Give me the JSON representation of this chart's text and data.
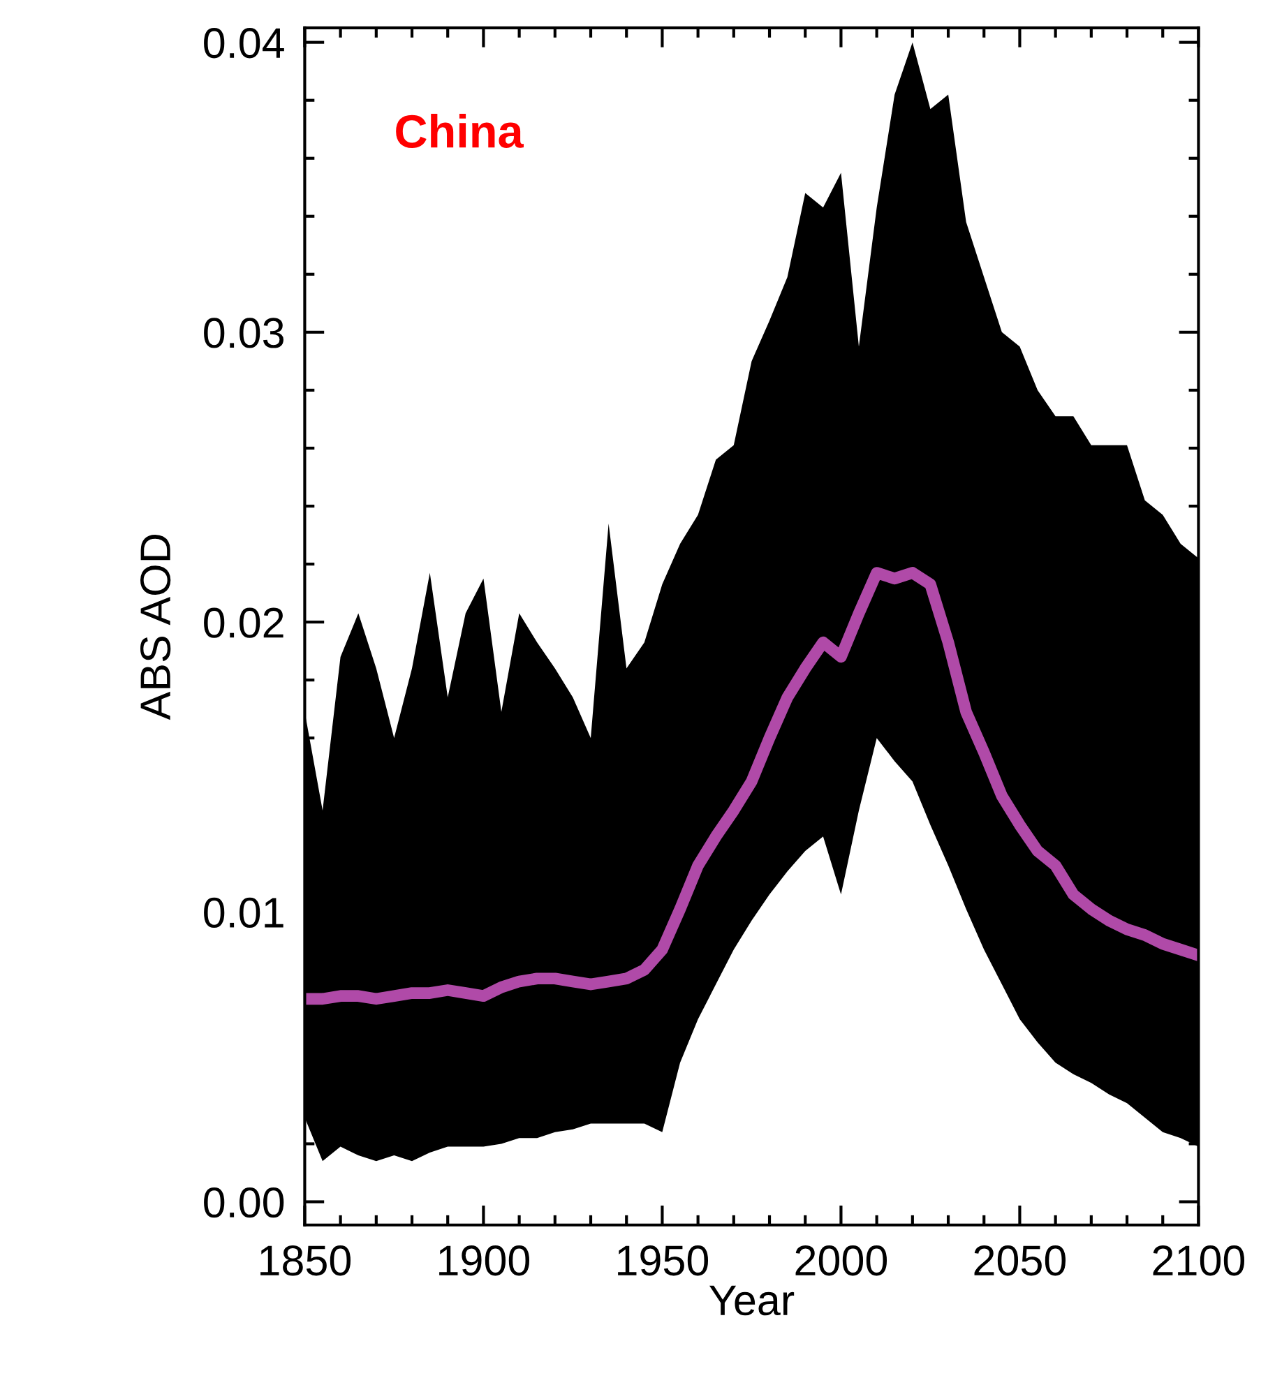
{
  "chart_data": {
    "type": "line",
    "xlabel": "Year",
    "ylabel": "ABS AOD",
    "annotations": [
      "China"
    ],
    "x": [
      1850,
      1855,
      1860,
      1865,
      1870,
      1875,
      1880,
      1885,
      1890,
      1895,
      1900,
      1905,
      1910,
      1915,
      1920,
      1925,
      1930,
      1935,
      1940,
      1945,
      1950,
      1955,
      1960,
      1965,
      1970,
      1975,
      1980,
      1985,
      1990,
      1995,
      2000,
      2005,
      2010,
      2015,
      2020,
      2025,
      2030,
      2035,
      2040,
      2045,
      2050,
      2055,
      2060,
      2065,
      2070,
      2075,
      2080,
      2085,
      2090,
      2095,
      2100
    ],
    "series": [
      {
        "color": "#b04aa8",
        "values": [
          0.007,
          0.007,
          0.0071,
          0.0071,
          0.007,
          0.0071,
          0.0072,
          0.0072,
          0.0073,
          0.0072,
          0.0071,
          0.0074,
          0.0076,
          0.0077,
          0.0077,
          0.0076,
          0.0075,
          0.0076,
          0.0077,
          0.008,
          0.0087,
          0.0101,
          0.0116,
          0.0126,
          0.0135,
          0.0145,
          0.016,
          0.0174,
          0.0184,
          0.0193,
          0.0188,
          0.0203,
          0.0217,
          0.0215,
          0.0217,
          0.0213,
          0.0193,
          0.0169,
          0.0155,
          0.014,
          0.013,
          0.0121,
          0.0116,
          0.0106,
          0.0101,
          0.0097,
          0.0094,
          0.0092,
          0.0089,
          0.0087,
          0.0085
        ],
        "upper": [
          0.0169,
          0.0135,
          0.0188,
          0.0203,
          0.0184,
          0.016,
          0.0184,
          0.0217,
          0.0174,
          0.0203,
          0.0215,
          0.0169,
          0.0203,
          0.0193,
          0.0184,
          0.0174,
          0.016,
          0.0234,
          0.0184,
          0.0193,
          0.0213,
          0.0227,
          0.0237,
          0.0256,
          0.0261,
          0.029,
          0.0304,
          0.0319,
          0.0348,
          0.0343,
          0.0355,
          0.0295,
          0.0343,
          0.0382,
          0.04,
          0.0377,
          0.0382,
          0.0338,
          0.0319,
          0.03,
          0.0295,
          0.028,
          0.0271,
          0.0271,
          0.0261,
          0.0261,
          0.0261,
          0.0242,
          0.0237,
          0.0227,
          0.0222
        ],
        "lower": [
          0.0029,
          0.0014,
          0.0019,
          0.0016,
          0.0014,
          0.0016,
          0.0014,
          0.0017,
          0.0019,
          0.0019,
          0.0019,
          0.002,
          0.0022,
          0.0022,
          0.0024,
          0.0025,
          0.0027,
          0.0027,
          0.0027,
          0.0027,
          0.0024,
          0.0048,
          0.0063,
          0.0075,
          0.0087,
          0.0097,
          0.0106,
          0.0114,
          0.0121,
          0.0126,
          0.0106,
          0.0135,
          0.016,
          0.0152,
          0.0145,
          0.013,
          0.0116,
          0.0101,
          0.0087,
          0.0075,
          0.0063,
          0.0055,
          0.0048,
          0.0044,
          0.0041,
          0.0037,
          0.0034,
          0.0029,
          0.0024,
          0.0022,
          0.0019
        ]
      }
    ],
    "xlim": [
      1850,
      2100
    ],
    "xticks": [
      1850,
      1900,
      1950,
      2000,
      2050,
      2100
    ],
    "ylim": [
      -0.0008,
      0.0405
    ],
    "yticks": [
      {
        "value": 0,
        "label": "0.00"
      },
      {
        "value": 0.01,
        "label": "0.01"
      },
      {
        "value": 0.02,
        "label": "0.02"
      },
      {
        "value": 0.03,
        "label": "0.03"
      },
      {
        "value": 0.04,
        "label": "0.04"
      }
    ],
    "grid": false
  }
}
